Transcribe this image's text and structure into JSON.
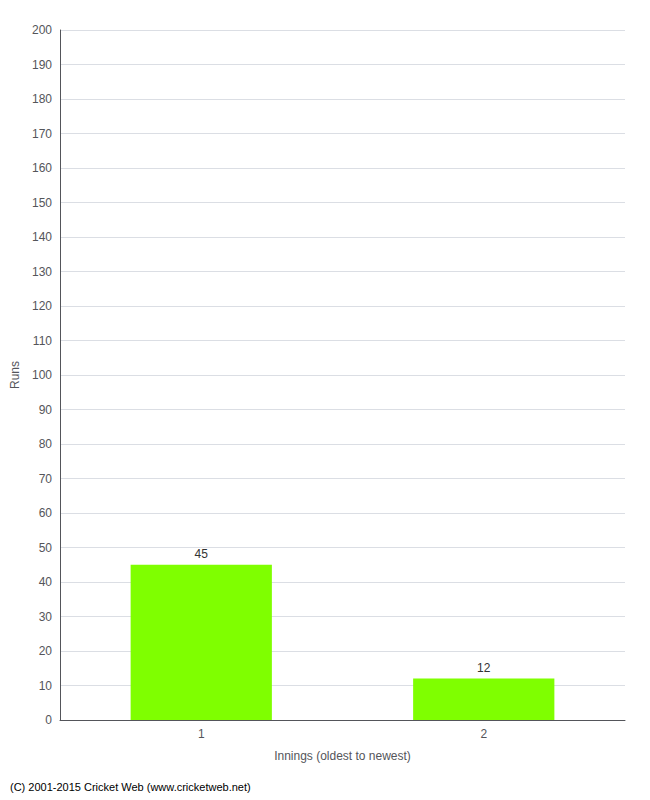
{
  "chart_data": {
    "type": "bar",
    "categories": [
      "1",
      "2"
    ],
    "values": [
      45,
      12
    ],
    "color": "#7fff00",
    "xlabel": "Innings (oldest to newest)",
    "ylabel": "Runs",
    "ylim": [
      0,
      200
    ],
    "yticks": [
      0,
      10,
      20,
      30,
      40,
      50,
      60,
      70,
      80,
      90,
      100,
      110,
      120,
      130,
      140,
      150,
      160,
      170,
      180,
      190,
      200
    ],
    "grid": true,
    "data_labels": true,
    "footer": "(C) 2001-2015 Cricket Web (www.cricketweb.net)"
  }
}
